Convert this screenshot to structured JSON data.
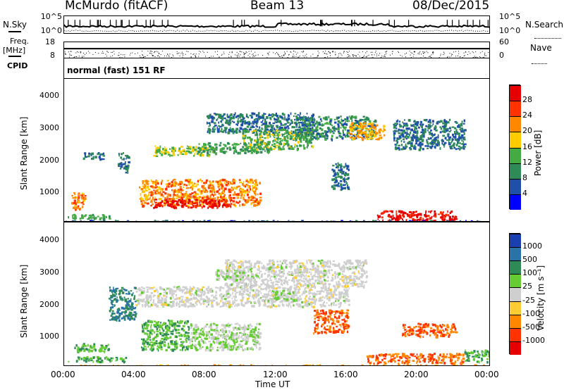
{
  "header": {
    "station": "McMurdo (fitACF)",
    "beam": "Beam 13",
    "date": "08/Dec/2015"
  },
  "noise_panel": {
    "left_label": "N.Sky",
    "right_label": "N.Search",
    "ticks_left": [
      "10^5",
      "10^0"
    ],
    "ticks_right": [
      "10^5",
      "10^0"
    ]
  },
  "freq_panel": {
    "left_label_1": "Freq.",
    "left_label_2": "[MHz]",
    "right_label": "Nave",
    "ticks_left": [
      "18",
      "8"
    ],
    "ticks_right": [
      "60",
      "0"
    ]
  },
  "cpid": {
    "label": "CPID",
    "value": "normal (fast) 151 RF"
  },
  "x_axis": {
    "ticks": [
      "00:00",
      "04:00",
      "08:00",
      "12:00",
      "16:00",
      "20:00",
      "00:00"
    ],
    "label": "Time UT"
  },
  "power_panel": {
    "ylabel": "Slant Range [km]",
    "yticks": [
      "4000",
      "3000",
      "2000",
      "1000"
    ],
    "cbar_label": "Power [dB]",
    "cbar_ticks": [
      "28",
      "24",
      "20",
      "16",
      "12",
      "8",
      "4"
    ],
    "cbar_colors": [
      "#e60000",
      "#ff3300",
      "#ff8800",
      "#ffcc00",
      "#44aa44",
      "#2e8b57",
      "#1f4fa8",
      "#0000ff"
    ]
  },
  "velocity_panel": {
    "ylabel": "Slant Range [km]",
    "yticks": [
      "4000",
      "3000",
      "2000",
      "1000"
    ],
    "cbar_label": "Velocity [m s⁻¹]",
    "cbar_ticks": [
      "1000",
      "500",
      "100",
      "25",
      "-25",
      "-100",
      "-500",
      "-1000"
    ],
    "cbar_colors": [
      "#1a3fb0",
      "#2a73a8",
      "#2e8b57",
      "#66cc33",
      "#cfcfcf",
      "#ffcc33",
      "#ff8800",
      "#ff3300",
      "#e60000"
    ]
  },
  "chart_data": {
    "type": "heatmap",
    "title": "McMurdo (fitACF) Beam 13 08/Dec/2015",
    "xlabel": "Time UT",
    "ylabel": "Slant Range [km]",
    "xlim_hours": [
      0,
      24
    ],
    "ylim_km": [
      180,
      4500
    ],
    "grid": false,
    "power_scale_dB": [
      0,
      32
    ],
    "velocity_scale_ms": [
      -1000,
      1000
    ],
    "power_regions": [
      {
        "t0": 0.2,
        "t1": 2.6,
        "r0": 300,
        "r1": 450,
        "level": 12
      },
      {
        "t0": 0.4,
        "t1": 1.2,
        "r0": 600,
        "r1": 1100,
        "level": 22
      },
      {
        "t0": 1.0,
        "t1": 2.2,
        "r0": 2100,
        "r1": 2300,
        "level": 8
      },
      {
        "t0": 3.0,
        "t1": 3.6,
        "r0": 1700,
        "r1": 2300,
        "level": 8
      },
      {
        "t0": 4.2,
        "t1": 11.0,
        "r0": 700,
        "r1": 1500,
        "level": 22
      },
      {
        "t0": 5.0,
        "t1": 9.5,
        "r0": 650,
        "r1": 900,
        "level": 30
      },
      {
        "t0": 5.0,
        "t1": 8.5,
        "r0": 2200,
        "r1": 2500,
        "level": 16
      },
      {
        "t0": 7.5,
        "t1": 11.5,
        "r0": 2300,
        "r1": 2600,
        "level": 12
      },
      {
        "t0": 8.0,
        "t1": 14.0,
        "r0": 2900,
        "r1": 3500,
        "level": 8
      },
      {
        "t0": 10.0,
        "t1": 14.0,
        "r0": 2400,
        "r1": 3000,
        "level": 14
      },
      {
        "t0": 13.0,
        "t1": 17.5,
        "r0": 2700,
        "r1": 3400,
        "level": 10
      },
      {
        "t0": 15.0,
        "t1": 16.0,
        "r0": 1200,
        "r1": 2000,
        "level": 8
      },
      {
        "t0": 16.0,
        "t1": 18.0,
        "r0": 2700,
        "r1": 3200,
        "level": 20
      },
      {
        "t0": 17.5,
        "t1": 22.0,
        "r0": 250,
        "r1": 550,
        "level": 30
      },
      {
        "t0": 18.5,
        "t1": 22.5,
        "r0": 2400,
        "r1": 3300,
        "level": 8
      },
      {
        "t0": 0.0,
        "t1": 24.0,
        "r0": 190,
        "r1": 260,
        "level": 6
      }
    ],
    "velocity_regions": [
      {
        "t0": 0.2,
        "t1": 3.5,
        "r0": 350,
        "r1": 500,
        "level": 100
      },
      {
        "t0": 0.5,
        "t1": 2.5,
        "r0": 650,
        "r1": 900,
        "level": 100
      },
      {
        "t0": 2.5,
        "t1": 4.0,
        "r0": 1600,
        "r1": 2600,
        "level": 500
      },
      {
        "t0": 4.3,
        "t1": 7.0,
        "r0": 700,
        "r1": 1600,
        "level": 100
      },
      {
        "t0": 7.0,
        "t1": 11.0,
        "r0": 700,
        "r1": 1500,
        "level": 25
      },
      {
        "t0": 4.0,
        "t1": 16.0,
        "r0": 2000,
        "r1": 2600,
        "level": 0
      },
      {
        "t0": 9.0,
        "t1": 17.0,
        "r0": 2600,
        "r1": 3400,
        "level": 0
      },
      {
        "t0": 8.5,
        "t1": 10.5,
        "r0": 2800,
        "r1": 3100,
        "level": 25
      },
      {
        "t0": 11.5,
        "t1": 13.0,
        "r0": 2200,
        "r1": 2500,
        "level": 25
      },
      {
        "t0": 14.0,
        "t1": 16.0,
        "r0": 1200,
        "r1": 1900,
        "level": -500
      },
      {
        "t0": 17.0,
        "t1": 22.5,
        "r0": 300,
        "r1": 600,
        "level": -500
      },
      {
        "t0": 19.0,
        "t1": 22.0,
        "r0": 1100,
        "r1": 1500,
        "level": -500
      },
      {
        "t0": 22.5,
        "t1": 24.0,
        "r0": 350,
        "r1": 700,
        "level": 100
      },
      {
        "t0": 0.0,
        "t1": 24.0,
        "r0": 190,
        "r1": 260,
        "level": -100
      }
    ]
  }
}
